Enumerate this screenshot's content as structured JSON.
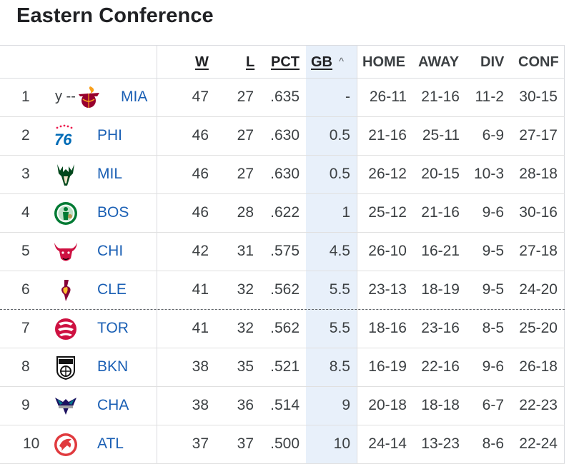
{
  "title": "Eastern Conference",
  "columns": {
    "w": "W",
    "l": "L",
    "pct": "PCT",
    "gb": "GB",
    "gb_sort_icon": "^",
    "home": "HOME",
    "away": "AWAY",
    "div": "DIV",
    "conf": "CONF"
  },
  "colors": {
    "link": "#1a5fb4",
    "gb_band": "#e8f0fa"
  },
  "rows": [
    {
      "rank": "1",
      "prefix": "y --",
      "logo": "heat-logo-icon",
      "team": "MIA",
      "w": "47",
      "l": "27",
      "pct": ".635",
      "gb": "-",
      "home": "26-11",
      "away": "21-16",
      "div": "11-2",
      "conf": "30-15"
    },
    {
      "rank": "2",
      "logo": "76ers-logo-icon",
      "team": "PHI",
      "w": "46",
      "l": "27",
      "pct": ".630",
      "gb": "0.5",
      "home": "21-16",
      "away": "25-11",
      "div": "6-9",
      "conf": "27-17"
    },
    {
      "rank": "3",
      "logo": "bucks-logo-icon",
      "team": "MIL",
      "w": "46",
      "l": "27",
      "pct": ".630",
      "gb": "0.5",
      "home": "26-12",
      "away": "20-15",
      "div": "10-3",
      "conf": "28-18"
    },
    {
      "rank": "4",
      "logo": "celtics-logo-icon",
      "team": "BOS",
      "w": "46",
      "l": "28",
      "pct": ".622",
      "gb": "1",
      "home": "25-12",
      "away": "21-16",
      "div": "9-6",
      "conf": "30-16"
    },
    {
      "rank": "5",
      "logo": "bulls-logo-icon",
      "team": "CHI",
      "w": "42",
      "l": "31",
      "pct": ".575",
      "gb": "4.5",
      "home": "26-10",
      "away": "16-21",
      "div": "9-5",
      "conf": "27-18"
    },
    {
      "rank": "6",
      "logo": "cavaliers-logo-icon",
      "team": "CLE",
      "w": "41",
      "l": "32",
      "pct": ".562",
      "gb": "5.5",
      "home": "23-13",
      "away": "18-19",
      "div": "9-5",
      "conf": "24-20"
    },
    {
      "rank": "7",
      "logo": "raptors-logo-icon",
      "team": "TOR",
      "w": "41",
      "l": "32",
      "pct": ".562",
      "gb": "5.5",
      "home": "18-16",
      "away": "23-16",
      "div": "8-5",
      "conf": "25-20"
    },
    {
      "rank": "8",
      "logo": "nets-logo-icon",
      "team": "BKN",
      "w": "38",
      "l": "35",
      "pct": ".521",
      "gb": "8.5",
      "home": "16-19",
      "away": "22-16",
      "div": "9-6",
      "conf": "26-18"
    },
    {
      "rank": "9",
      "logo": "hornets-logo-icon",
      "team": "CHA",
      "w": "38",
      "l": "36",
      "pct": ".514",
      "gb": "9",
      "home": "20-18",
      "away": "18-18",
      "div": "6-7",
      "conf": "22-23"
    },
    {
      "rank": "10",
      "logo": "hawks-logo-icon",
      "team": "ATL",
      "w": "37",
      "l": "37",
      "pct": ".500",
      "gb": "10",
      "home": "24-14",
      "away": "13-23",
      "div": "8-6",
      "conf": "22-24"
    }
  ]
}
